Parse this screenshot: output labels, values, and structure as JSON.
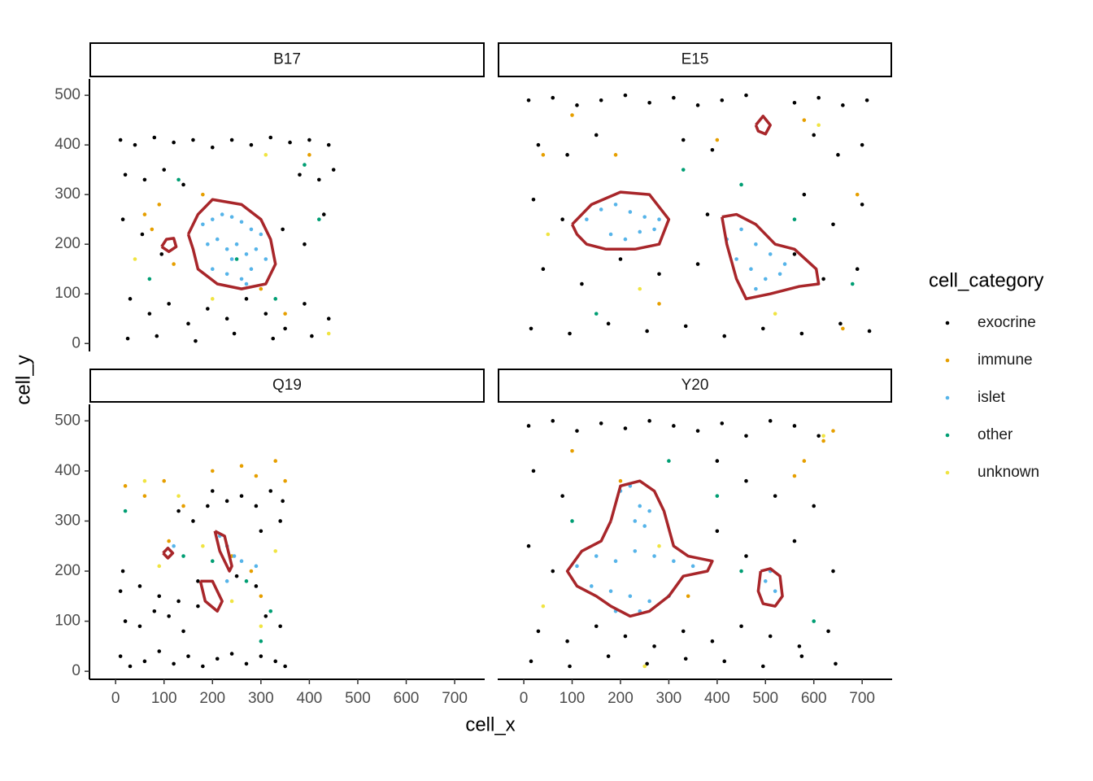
{
  "chart_data": {
    "type": "scatter",
    "xlabel": "cell_x",
    "ylabel": "cell_y",
    "legend_title": "cell_category",
    "xlim": [
      -54,
      762
    ],
    "ylim": [
      -16,
      533
    ],
    "xticks": [
      0,
      100,
      200,
      300,
      400,
      500,
      600,
      700
    ],
    "yticks": [
      0,
      100,
      200,
      300,
      400,
      500
    ],
    "outline_color": "#a8262a",
    "categories": [
      {
        "name": "exocrine",
        "color": "#000000"
      },
      {
        "name": "immune",
        "color": "#E69F00"
      },
      {
        "name": "islet",
        "color": "#56B4E9"
      },
      {
        "name": "other",
        "color": "#009E73"
      },
      {
        "name": "unknown",
        "color": "#F0E442"
      }
    ],
    "facets": [
      {
        "title": "B17",
        "series": [
          {
            "x": [
              10,
              40,
              80,
              120,
              160,
              200,
              240,
              280,
              320,
              360,
              400,
              440,
              20,
              60,
              100,
              140,
              380,
              420,
              450,
              15,
              55,
              95,
              345,
              390,
              430,
              30,
              70,
              110,
              150,
              190,
              230,
              270,
              310,
              350,
              390,
              440,
              25,
              85,
              165,
              245,
              325,
              405
            ],
            "y": [
              410,
              400,
              415,
              405,
              410,
              395,
              410,
              400,
              415,
              405,
              410,
              400,
              340,
              330,
              350,
              320,
              340,
              330,
              350,
              250,
              220,
              180,
              230,
              200,
              260,
              90,
              60,
              80,
              40,
              70,
              50,
              90,
              60,
              30,
              80,
              50,
              10,
              15,
              5,
              20,
              10,
              15
            ]
          },
          {
            "x": [
              60,
              75,
              90,
              180,
              120,
              300,
              400,
              350
            ],
            "y": [
              260,
              230,
              280,
              300,
              160,
              110,
              380,
              60
            ]
          },
          {
            "x": [
              180,
              200,
              220,
              240,
              260,
              280,
              300,
              190,
              210,
              230,
              250,
              270,
              290,
              310,
              200,
              230,
              260,
              280,
              240,
              270
            ],
            "y": [
              240,
              250,
              260,
              255,
              245,
              230,
              220,
              200,
              210,
              190,
              200,
              180,
              190,
              170,
              150,
              140,
              130,
              150,
              170,
              120
            ]
          },
          {
            "x": [
              70,
              130,
              250,
              330,
              420,
              390
            ],
            "y": [
              130,
              330,
              170,
              90,
              250,
              360
            ]
          },
          {
            "x": [
              40,
              310,
              200,
              440
            ],
            "y": [
              170,
              380,
              90,
              20
            ]
          }
        ],
        "outlines": [
          {
            "x": [
              150,
              170,
              200,
              260,
              300,
              320,
              330,
              310,
              260,
              210,
              170,
              160,
              150
            ],
            "y": [
              220,
              260,
              290,
              280,
              250,
              210,
              160,
              120,
              110,
              120,
              150,
              190,
              220
            ]
          },
          {
            "x": [
              95,
              105,
              120,
              125,
              110,
              95
            ],
            "y": [
              195,
              210,
              212,
              195,
              185,
              195
            ]
          }
        ]
      },
      {
        "title": "E15",
        "series": [
          {
            "x": [
              10,
              60,
              110,
              160,
              210,
              260,
              310,
              360,
              410,
              460,
              560,
              610,
              660,
              710,
              30,
              90,
              150,
              330,
              390,
              600,
              650,
              700,
              20,
              80,
              380,
              580,
              640,
              700,
              40,
              120,
              200,
              280,
              360,
              560,
              620,
              690,
              15,
              95,
              175,
              255,
              335,
              415,
              495,
              575,
              655,
              715
            ],
            "y": [
              490,
              495,
              480,
              490,
              500,
              485,
              495,
              480,
              490,
              500,
              485,
              495,
              480,
              490,
              400,
              380,
              420,
              410,
              390,
              420,
              380,
              400,
              290,
              250,
              260,
              300,
              240,
              280,
              150,
              120,
              170,
              140,
              160,
              180,
              130,
              150,
              30,
              20,
              40,
              25,
              35,
              15,
              30,
              20,
              40,
              25
            ]
          },
          {
            "x": [
              100,
              190,
              400,
              580,
              660,
              40,
              690,
              280
            ],
            "y": [
              460,
              380,
              410,
              450,
              30,
              380,
              300,
              80
            ]
          },
          {
            "x": [
              130,
              160,
              190,
              220,
              250,
              280,
              180,
              210,
              240,
              270,
              420,
              450,
              480,
              510,
              540,
              440,
              470,
              500,
              530,
              480
            ],
            "y": [
              250,
              270,
              280,
              265,
              255,
              250,
              220,
              210,
              225,
              230,
              210,
              230,
              200,
              180,
              160,
              170,
              150,
              130,
              140,
              110
            ]
          },
          {
            "x": [
              330,
              560,
              150,
              450,
              680
            ],
            "y": [
              350,
              250,
              60,
              320,
              120
            ]
          },
          {
            "x": [
              50,
              240,
              610,
              520
            ],
            "y": [
              220,
              110,
              440,
              60
            ]
          }
        ],
        "outlines": [
          {
            "x": [
              100,
              140,
              200,
              260,
              300,
              280,
              230,
              170,
              130,
              110,
              100
            ],
            "y": [
              240,
              280,
              305,
              300,
              250,
              200,
              190,
              190,
              200,
              220,
              240
            ]
          },
          {
            "x": [
              410,
              440,
              480,
              520,
              560,
              605,
              610,
              570,
              510,
              460,
              440,
              420,
              410
            ],
            "y": [
              255,
              260,
              240,
              200,
              190,
              150,
              120,
              115,
              100,
              90,
              130,
              200,
              255
            ]
          },
          {
            "x": [
              480,
              495,
              510,
              500,
              485,
              480
            ],
            "y": [
              440,
              458,
              440,
              422,
              428,
              440
            ]
          }
        ]
      },
      {
        "title": "Q19",
        "series": [
          {
            "x": [
              10,
              30,
              60,
              90,
              120,
              150,
              180,
              210,
              240,
              270,
              300,
              330,
              350,
              20,
              50,
              80,
              110,
              140,
              170,
              310,
              340,
              130,
              160,
              190,
              300,
              340,
              15,
              200,
              230,
              260,
              290,
              320,
              345,
              10,
              50,
              90,
              130,
              170,
              250,
              290
            ],
            "y": [
              30,
              10,
              20,
              40,
              15,
              30,
              10,
              25,
              35,
              15,
              30,
              20,
              10,
              100,
              90,
              120,
              110,
              80,
              130,
              110,
              90,
              320,
              300,
              330,
              280,
              300,
              200,
              360,
              340,
              350,
              330,
              360,
              340,
              160,
              170,
              150,
              140,
              180,
              190,
              170
            ]
          },
          {
            "x": [
              20,
              60,
              100,
              140,
              200,
              260,
              290,
              330,
              350,
              280,
              300,
              110,
              240
            ],
            "y": [
              370,
              350,
              380,
              330,
              400,
              410,
              390,
              420,
              380,
              200,
              150,
              260,
              230
            ]
          },
          {
            "x": [
              230,
              245,
              215,
              260,
              120,
              230,
              290
            ],
            "y": [
              250,
              230,
              270,
              220,
              250,
              180,
              210
            ]
          },
          {
            "x": [
              20,
              140,
              270,
              320,
              300,
              200
            ],
            "y": [
              320,
              230,
              180,
              120,
              60,
              220
            ]
          },
          {
            "x": [
              60,
              180,
              240,
              300,
              330,
              90,
              130
            ],
            "y": [
              380,
              250,
              140,
              90,
              240,
              210,
              350
            ]
          }
        ],
        "outlines": [
          {
            "x": [
              205,
              225,
              240,
              235,
              215,
              205
            ],
            "y": [
              280,
              270,
              210,
              200,
              240,
              280
            ]
          },
          {
            "x": [
              175,
              200,
              220,
              210,
              185,
              175
            ],
            "y": [
              180,
              180,
              140,
              120,
              140,
              180
            ]
          },
          {
            "x": [
              98,
              108,
              118,
              108,
              98
            ],
            "y": [
              236,
              246,
              236,
              226,
              236
            ]
          }
        ]
      },
      {
        "title": "Y20",
        "series": [
          {
            "x": [
              10,
              60,
              110,
              160,
              210,
              260,
              310,
              360,
              410,
              460,
              510,
              560,
              610,
              20,
              80,
              400,
              460,
              520,
              600,
              10,
              60,
              400,
              460,
              560,
              640,
              30,
              90,
              150,
              210,
              270,
              330,
              390,
              450,
              510,
              570,
              630,
              15,
              95,
              175,
              255,
              335,
              415,
              495,
              575,
              645
            ],
            "y": [
              490,
              500,
              480,
              495,
              485,
              500,
              490,
              480,
              495,
              470,
              500,
              490,
              470,
              400,
              350,
              420,
              380,
              350,
              330,
              250,
              200,
              280,
              230,
              260,
              200,
              80,
              60,
              90,
              70,
              50,
              80,
              60,
              90,
              70,
              50,
              80,
              20,
              10,
              30,
              15,
              25,
              20,
              10,
              30,
              15
            ]
          },
          {
            "x": [
              560,
              620,
              100,
              340,
              200,
              580,
              640
            ],
            "y": [
              390,
              460,
              440,
              150,
              380,
              420,
              480
            ]
          },
          {
            "x": [
              200,
              220,
              240,
              260,
              250,
              230,
              110,
              150,
              190,
              230,
              270,
              310,
              350,
              140,
              180,
              220,
              260,
              300,
              190,
              240,
              500,
              520,
              510
            ],
            "y": [
              360,
              370,
              330,
              320,
              290,
              300,
              210,
              230,
              220,
              240,
              230,
              220,
              210,
              170,
              160,
              150,
              140,
              150,
              120,
              120,
              180,
              160,
              200
            ]
          },
          {
            "x": [
              300,
              100,
              450,
              600,
              400
            ],
            "y": [
              420,
              300,
              200,
              100,
              350
            ]
          },
          {
            "x": [
              280,
              40,
              620,
              250
            ],
            "y": [
              250,
              130,
              470,
              10
            ]
          }
        ],
        "outlines": [
          {
            "x": [
              180,
              200,
              240,
              270,
              290,
              310,
              340,
              390,
              380,
              330,
              300,
              260,
              220,
              180,
              150,
              110,
              90,
              120,
              160,
              180
            ],
            "y": [
              300,
              370,
              380,
              360,
              320,
              250,
              230,
              220,
              200,
              190,
              150,
              120,
              110,
              130,
              150,
              170,
              200,
              240,
              260,
              300
            ]
          },
          {
            "x": [
              490,
              510,
              530,
              535,
              520,
              495,
              485,
              490
            ],
            "y": [
              200,
              205,
              190,
              150,
              130,
              135,
              160,
              200
            ]
          }
        ]
      }
    ]
  }
}
